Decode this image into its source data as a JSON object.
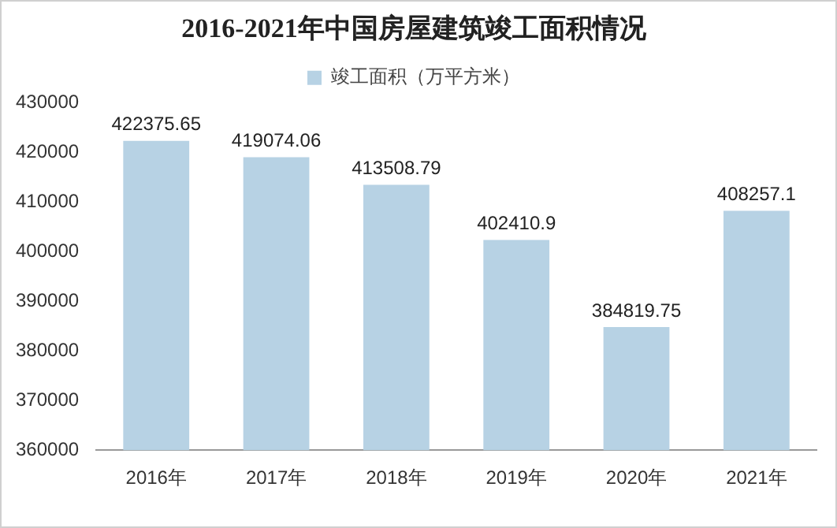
{
  "chart_data": {
    "type": "bar",
    "title": "2016-2021年中国房屋建筑竣工面积情况",
    "categories": [
      "2016年",
      "2017年",
      "2018年",
      "2019年",
      "2020年",
      "2021年"
    ],
    "series": [
      {
        "name": "竣工面积（万平方米）",
        "color": "#b7d2e4",
        "values": [
          422375.65,
          419074.06,
          413508.79,
          402410.9,
          384819.75,
          408257.1
        ]
      }
    ],
    "ylim": [
      360000,
      430000
    ],
    "yticks": [
      360000,
      370000,
      380000,
      390000,
      400000,
      410000,
      420000,
      430000
    ],
    "grid": false,
    "legend": "top",
    "data_labels": true
  }
}
